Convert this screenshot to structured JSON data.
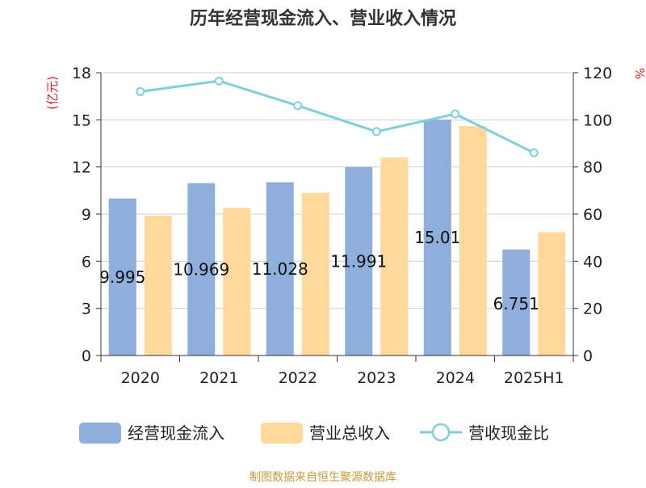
{
  "chart_data": {
    "type": "bar",
    "title": "历年经营现金流入、营业收入情况",
    "categories": [
      "2020",
      "2021",
      "2022",
      "2023",
      "2024",
      "2025H1"
    ],
    "left_axis": {
      "label": "(亿元)",
      "ylim": [
        0,
        18
      ],
      "ticks": [
        "0",
        "3",
        "6",
        "9",
        "12",
        "15",
        "18"
      ]
    },
    "right_axis": {
      "label": "%",
      "ylim": [
        0,
        120
      ],
      "ticks": [
        "0",
        "20",
        "40",
        "60",
        "80",
        "100",
        "120"
      ]
    },
    "series": [
      {
        "name": "经营现金流入",
        "type": "bar",
        "axis": "left",
        "color": "#8eaedb",
        "values": [
          9.995,
          10.969,
          11.028,
          11.991,
          15.01,
          6.751
        ],
        "labels": [
          "9.995",
          "10.969",
          "11.028",
          "11.991",
          "15.01",
          "6.751"
        ]
      },
      {
        "name": "营业总收入",
        "type": "bar",
        "axis": "left",
        "color": "#ffd999",
        "values": [
          8.9,
          9.4,
          10.35,
          12.6,
          14.6,
          7.85
        ]
      },
      {
        "name": "营收现金比",
        "type": "line",
        "axis": "right",
        "color": "#7fd0d8",
        "values": [
          112,
          116.5,
          106,
          95,
          102.5,
          86
        ]
      }
    ],
    "grid": true,
    "legend_position": "bottom"
  },
  "colors": {
    "title": "#333333",
    "axis_label_red": "#e02020",
    "source": "#c89a3a"
  },
  "source": "制图数据来自恒生聚源数据库"
}
